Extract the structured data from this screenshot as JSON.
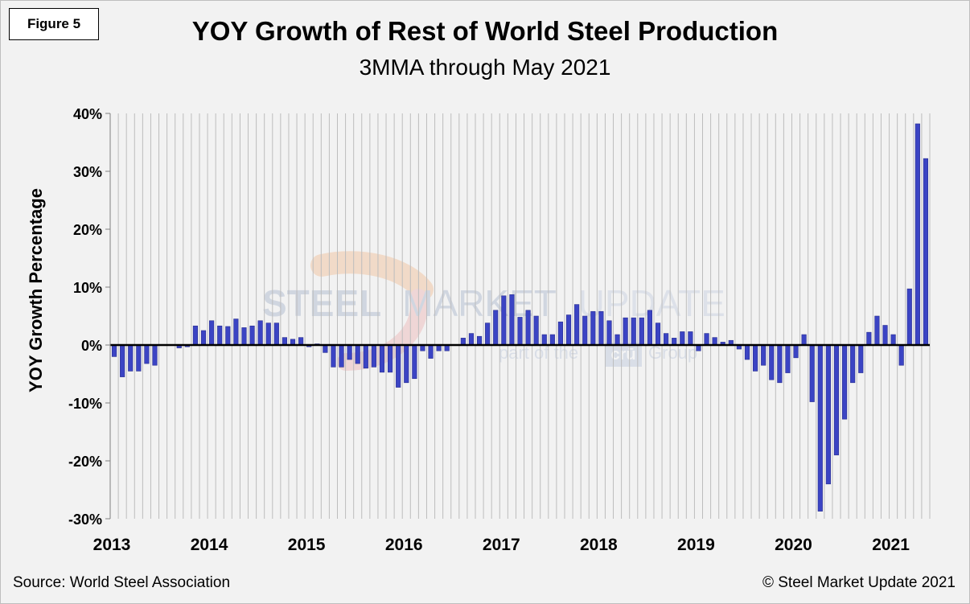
{
  "figure_label": "Figure 5",
  "source": "Source: World Steel Association",
  "copyright": "© Steel Market Update 2021",
  "watermark": {
    "brand_bold": "STEEL",
    "brand_mid": "MARKET",
    "brand_light": "UPDATE",
    "tagline_pre": "part of the",
    "tagline_logo": "crū",
    "tagline_post": "Group"
  },
  "colors": {
    "bar": "#3b44c4",
    "bar_stroke": "#2a2f8f",
    "grid": "#bdbdbd",
    "zero_line": "#000000"
  },
  "chart_data": {
    "type": "bar",
    "title": "YOY Growth of Rest of World Steel Production",
    "subtitle": "3MMA through May 2021",
    "xlabel": "",
    "ylabel": "YOY Growth Percentage",
    "ylim": [
      -30,
      40
    ],
    "yticks": [
      -30,
      -20,
      -10,
      0,
      10,
      20,
      30,
      40
    ],
    "ytick_labels": [
      "-30%",
      "-20%",
      "-10%",
      "0%",
      "10%",
      "20%",
      "30%",
      "40%"
    ],
    "year_labels": [
      "2013",
      "2014",
      "2015",
      "2016",
      "2017",
      "2018",
      "2019",
      "2020",
      "2021"
    ],
    "months_per_year": 12,
    "start": "Jan 2013",
    "end": "May 2021",
    "grid": true,
    "series": [
      {
        "name": "YOY Growth (3MMA)",
        "values": [
          -2.0,
          -5.5,
          -4.5,
          -4.5,
          -3.2,
          -3.5,
          0.0,
          0.0,
          -0.5,
          -0.3,
          3.3,
          2.5,
          4.2,
          3.3,
          3.2,
          4.5,
          3.0,
          3.3,
          4.2,
          3.8,
          3.8,
          1.3,
          1.0,
          1.3,
          -0.3,
          0.2,
          -1.3,
          -3.8,
          -3.8,
          -2.5,
          -3.2,
          -4.0,
          -3.8,
          -4.7,
          -4.7,
          -7.3,
          -6.5,
          -5.8,
          -1.0,
          -2.3,
          -1.0,
          -1.0,
          0.0,
          1.2,
          2.0,
          1.5,
          3.8,
          6.0,
          8.5,
          8.7,
          4.8,
          6.0,
          5.0,
          1.8,
          1.8,
          4.0,
          5.2,
          7.0,
          5.0,
          5.8,
          5.8,
          4.2,
          1.8,
          4.7,
          4.7,
          4.7,
          6.0,
          3.8,
          2.0,
          1.2,
          2.3,
          2.3,
          -1.0,
          2.0,
          1.3,
          0.5,
          0.8,
          -0.7,
          -2.5,
          -4.5,
          -3.5,
          -6.0,
          -6.5,
          -4.8,
          -2.2,
          1.8,
          -9.8,
          -28.7,
          -24.0,
          -19.0,
          -12.8,
          -6.5,
          -4.8,
          2.2,
          5.0,
          3.4,
          1.8,
          -3.5,
          9.7,
          38.2,
          32.2
        ]
      }
    ]
  }
}
